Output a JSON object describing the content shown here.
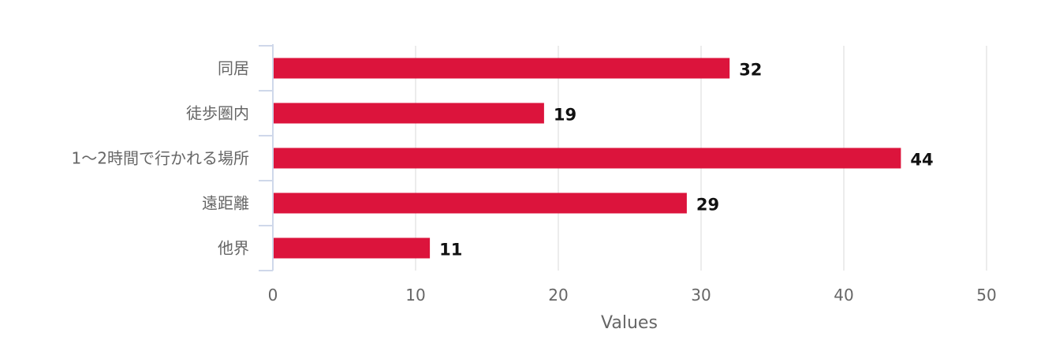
{
  "chart_data": {
    "type": "bar",
    "orientation": "horizontal",
    "categories": [
      "同居",
      "徒歩圏内",
      "1～2時間で行かれる場所",
      "遠距離",
      "他界"
    ],
    "values": [
      32,
      19,
      44,
      29,
      11
    ],
    "xlabel": "Values",
    "ylabel": "",
    "xlim": [
      0,
      50
    ],
    "xticks": [
      0,
      10,
      20,
      30,
      40,
      50
    ],
    "grid": true,
    "data_labels": true,
    "bar_color": "#dc143c"
  }
}
